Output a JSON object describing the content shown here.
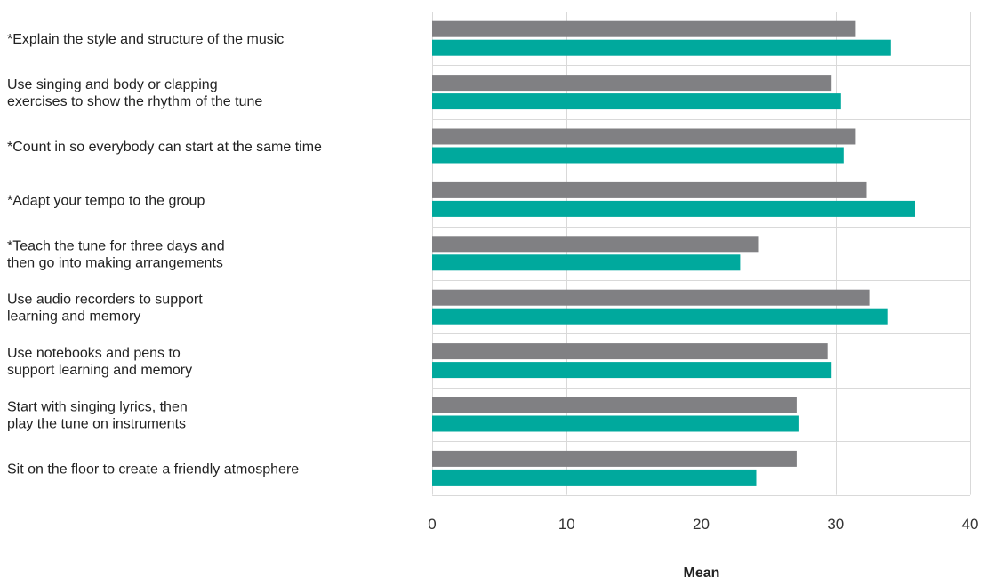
{
  "chart_data": {
    "type": "bar",
    "orientation": "horizontal",
    "categories": [
      "*Explain the style and structure of the music",
      "Use singing and body or clapping\nexercises to show the rhythm of the tune",
      "*Count in so everybody can start at the same time",
      "*Adapt your tempo to the group",
      "*Teach the tune for three days and\nthen go into making arrangements",
      "Use audio recorders to support\nlearning and memory",
      "Use notebooks and pens to\nsupport learning and memory",
      "Start with singing lyrics, then\nplay the tune on instruments",
      "Sit on the floor to create a friendly atmosphere"
    ],
    "series": [
      {
        "color": "#808083",
        "values": [
          31.5,
          29.7,
          31.5,
          32.3,
          24.3,
          32.5,
          29.4,
          27.1,
          27.1
        ]
      },
      {
        "color": "#00a99d",
        "values": [
          34.1,
          30.4,
          30.6,
          35.9,
          22.9,
          33.9,
          29.7,
          27.3,
          24.1
        ]
      }
    ],
    "xlim": [
      0,
      40
    ],
    "xticks": [
      0,
      10,
      20,
      30,
      40
    ],
    "xlabel": "Mean",
    "ylabel": "",
    "title": "",
    "grid": true,
    "legend": "none"
  }
}
